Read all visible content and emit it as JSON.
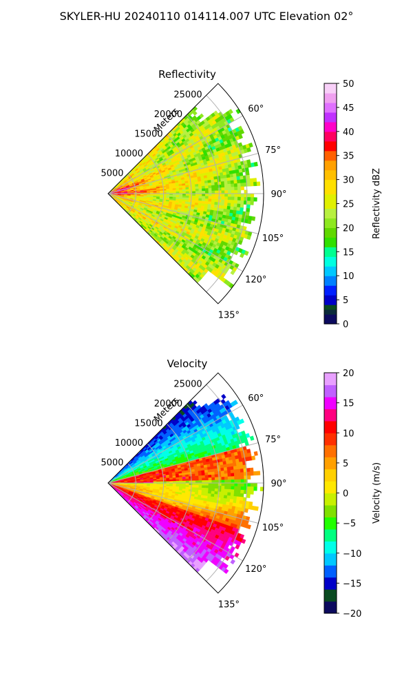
{
  "suptitle": "SKYLER-HU  20240110  014114.007 UTC Elevation 02°",
  "chart_data": [
    {
      "type": "heatmap",
      "subtype": "polar-sector (PPI)",
      "title": "Reflectivity",
      "radial_label": "Meters",
      "radial_ticks": [
        5000,
        10000,
        15000,
        20000,
        25000
      ],
      "r_max": 28000,
      "angle_ticks": [
        "60°",
        "75°",
        "90°",
        "105°",
        "120°",
        "135°"
      ],
      "theta_range_deg": [
        45,
        135
      ],
      "colorbar": {
        "label": "Reflectivity dBZ",
        "vmin": 0,
        "vmax": 50,
        "ticks": [
          0,
          5,
          10,
          15,
          20,
          25,
          30,
          35,
          40,
          45,
          50
        ],
        "colors": [
          {
            "v": 0,
            "c": "#0c0a5e"
          },
          {
            "v": 2,
            "c": "#0b2a3a"
          },
          {
            "v": 3,
            "c": "#0a4a20"
          },
          {
            "v": 4,
            "c": "#0000c8"
          },
          {
            "v": 6,
            "c": "#0020ff"
          },
          {
            "v": 8,
            "c": "#0080ff"
          },
          {
            "v": 10,
            "c": "#00c8ff"
          },
          {
            "v": 12,
            "c": "#00ffe0"
          },
          {
            "v": 14,
            "c": "#00ff90"
          },
          {
            "v": 16,
            "c": "#30e000"
          },
          {
            "v": 18,
            "c": "#60d800"
          },
          {
            "v": 20,
            "c": "#8ee820"
          },
          {
            "v": 22,
            "c": "#b8f040"
          },
          {
            "v": 24,
            "c": "#e0f000"
          },
          {
            "v": 27,
            "c": "#ffe000"
          },
          {
            "v": 30,
            "c": "#ffc000"
          },
          {
            "v": 32,
            "c": "#ffa000"
          },
          {
            "v": 34,
            "c": "#ff6000"
          },
          {
            "v": 36,
            "c": "#ff0000"
          },
          {
            "v": 38,
            "c": "#ff0060"
          },
          {
            "v": 40,
            "c": "#ff00c8"
          },
          {
            "v": 42,
            "c": "#c030ff"
          },
          {
            "v": 44,
            "c": "#e070ff"
          },
          {
            "v": 46,
            "c": "#f0a0f0"
          },
          {
            "v": 48,
            "c": "#f8d0f8"
          },
          {
            "v": 50,
            "c": "#fff0ff"
          }
        ]
      }
    },
    {
      "type": "heatmap",
      "subtype": "polar-sector (PPI)",
      "title": "Velocity",
      "radial_label": "Meters",
      "radial_ticks": [
        5000,
        10000,
        15000,
        20000,
        25000
      ],
      "r_max": 28000,
      "angle_ticks": [
        "60°",
        "75°",
        "90°",
        "105°",
        "120°",
        "135°"
      ],
      "theta_range_deg": [
        45,
        135
      ],
      "colorbar": {
        "label": "Velocity (m/s)",
        "vmin": -20,
        "vmax": 20,
        "ticks": [
          -20,
          -15,
          -10,
          -5,
          0,
          5,
          10,
          15,
          20
        ],
        "colors": [
          {
            "v": -20,
            "c": "#0c0a5e"
          },
          {
            "v": -18,
            "c": "#0a4a20"
          },
          {
            "v": -16,
            "c": "#0000c8"
          },
          {
            "v": -14,
            "c": "#0060ff"
          },
          {
            "v": -12,
            "c": "#00c8ff"
          },
          {
            "v": -10,
            "c": "#00ffe8"
          },
          {
            "v": -8,
            "c": "#00ff80"
          },
          {
            "v": -6,
            "c": "#20ff00"
          },
          {
            "v": -4,
            "c": "#80e000"
          },
          {
            "v": -2,
            "c": "#c8f000"
          },
          {
            "v": 0,
            "c": "#ffe800"
          },
          {
            "v": 2,
            "c": "#ffd000"
          },
          {
            "v": 4,
            "c": "#ffa000"
          },
          {
            "v": 6,
            "c": "#ff7000"
          },
          {
            "v": 8,
            "c": "#ff3000"
          },
          {
            "v": 10,
            "c": "#ff0000"
          },
          {
            "v": 12,
            "c": "#ff0080"
          },
          {
            "v": 14,
            "c": "#f000ff"
          },
          {
            "v": 16,
            "c": "#c060ff"
          },
          {
            "v": 18,
            "c": "#e8a0ff"
          },
          {
            "v": 20,
            "c": "#f8e0ff"
          }
        ]
      }
    }
  ]
}
